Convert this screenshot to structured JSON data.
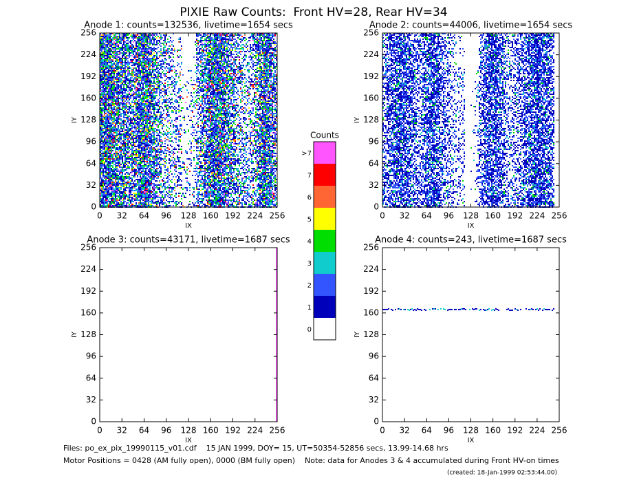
{
  "title": "PIXIE Raw Counts:  Front HV=28, Rear HV=34",
  "panels": [
    {
      "title": "Anode 1: counts=132536, livetime=1654 secs",
      "xlabel": "IX",
      "ylabel": "IY",
      "xlim": [
        0,
        256
      ],
      "ylim": [
        0,
        256
      ],
      "xticks": [
        0,
        32,
        64,
        96,
        128,
        160,
        192,
        224,
        256
      ],
      "yticks": [
        0,
        32,
        64,
        96,
        128,
        160,
        192,
        224,
        256
      ]
    },
    {
      "title": "Anode 2: counts=44006, livetime=1654 secs",
      "xlabel": "IX",
      "ylabel": "IY",
      "xlim": [
        0,
        256
      ],
      "ylim": [
        0,
        256
      ],
      "xticks": [
        0,
        32,
        64,
        96,
        128,
        160,
        192,
        224,
        256
      ],
      "yticks": [
        0,
        32,
        64,
        96,
        128,
        160,
        192,
        224,
        256
      ]
    },
    {
      "title": "Anode 3: counts=43171, livetime=1687 secs",
      "xlabel": "IX",
      "ylabel": "IY",
      "xlim": [
        0,
        256
      ],
      "ylim": [
        0,
        256
      ],
      "xticks": [
        0,
        32,
        64,
        96,
        128,
        160,
        192,
        224,
        256
      ],
      "yticks": [
        0,
        32,
        64,
        96,
        128,
        160,
        192,
        224,
        256
      ]
    },
    {
      "title": "Anode 4: counts=243, livetime=1687 secs",
      "xlabel": "IX",
      "ylabel": "IY",
      "xlim": [
        0,
        256
      ],
      "ylim": [
        0,
        256
      ],
      "xticks": [
        0,
        32,
        64,
        96,
        128,
        160,
        192,
        224,
        256
      ],
      "yticks": [
        0,
        32,
        64,
        96,
        128,
        160,
        192,
        224,
        256
      ]
    }
  ],
  "colorbar": {
    "title": "Counts",
    "labels": [
      ">7",
      "7",
      "6",
      "5",
      "4",
      "3",
      "2",
      "1",
      "0"
    ],
    "colors": [
      "#ff55ff",
      "#ff0000",
      "#ff6633",
      "#ffff00",
      "#00dd00",
      "#11cccc",
      "#3355ff",
      "#0000bb",
      "#ffffff"
    ]
  },
  "footer": {
    "files": "Files: po_ex_pix_19990115_v01.cdf    15 JAN 1999, DOY= 15, UT=50354-52856 secs, 13.99-14.68 hrs",
    "motor": "Motor Positions = 0428 (AM fully open), 0000 (BM fully open)    Note: data for Anodes 3 & 4 accumulated during Front HV-on times",
    "created": "(created: 18-Jan-1999 02:53:44.00)"
  }
}
